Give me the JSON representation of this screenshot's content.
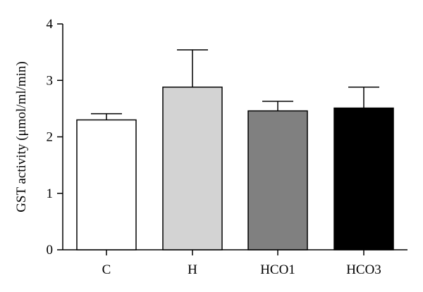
{
  "chart_data": {
    "type": "bar",
    "title": "",
    "xlabel": "",
    "ylabel": "GST activity (μmol/ml/min)",
    "ylim": [
      0,
      4
    ],
    "yticks": [
      "0",
      "1",
      "2",
      "3",
      "4"
    ],
    "categories": [
      "C",
      "H",
      "HCO1",
      "HCO3"
    ],
    "values": [
      2.3,
      2.88,
      2.46,
      2.51
    ],
    "errors": [
      0.11,
      0.66,
      0.17,
      0.37
    ],
    "colors": [
      "#ffffff",
      "#d3d3d3",
      "#808080",
      "#000000"
    ],
    "grid": false,
    "legend": "none"
  }
}
